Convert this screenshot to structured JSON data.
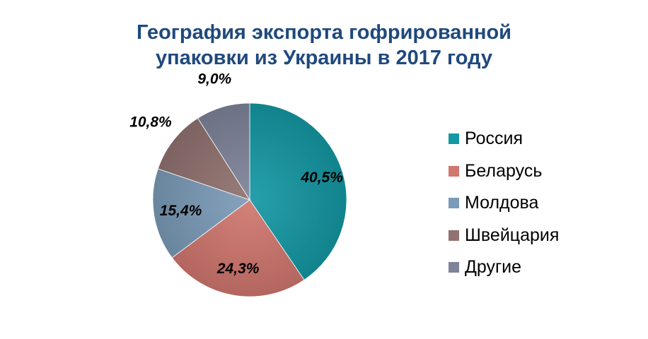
{
  "chart_data": {
    "type": "pie",
    "title": [
      "География экспорта гофрированной",
      "упаковки из Украины в 2017 году"
    ],
    "categories": [
      "Россия",
      "Беларусь",
      "Молдова",
      "Швейцария",
      "Другие"
    ],
    "values": [
      40.5,
      24.3,
      15.4,
      10.8,
      9.0
    ],
    "data_labels": [
      "40,5%",
      "24,3%",
      "15,4%",
      "10,8%",
      "9,0%"
    ],
    "colors": [
      "#1498a4",
      "#d0776e",
      "#7b9bb8",
      "#907270",
      "#7f8399"
    ],
    "legend_position": "right",
    "start_angle": "12 o'clock",
    "direction": "clockwise"
  }
}
